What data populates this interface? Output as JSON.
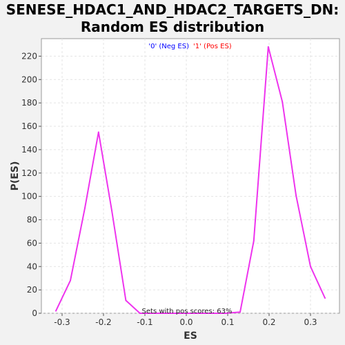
{
  "chart_data": {
    "type": "line",
    "title_lines": [
      "SENESE_HDAC1_AND_HDAC2_TARGETS_DN:",
      "Random ES distribution"
    ],
    "xlabel": "ES",
    "ylabel": "P(ES)",
    "xlim": [
      -0.35,
      0.37
    ],
    "ylim": [
      0,
      235
    ],
    "xticks": [
      -0.3,
      -0.2,
      -0.1,
      0.0,
      0.1,
      0.2,
      0.3
    ],
    "xtick_labels": [
      "-0.3",
      "-0.2",
      "-0.1",
      "0.0",
      "0.1",
      "0.2",
      "0.3"
    ],
    "yticks": [
      0,
      20,
      40,
      60,
      80,
      100,
      120,
      140,
      160,
      180,
      200,
      220
    ],
    "ytick_labels": [
      "0",
      "20",
      "40",
      "60",
      "80",
      "100",
      "120",
      "140",
      "160",
      "180",
      "200",
      "220"
    ],
    "grid": true,
    "legend": [
      {
        "label": "'0' (Neg ES)",
        "color": "#0000ff"
      },
      {
        "label": "'1' (Pos ES)",
        "color": "#ff0000"
      }
    ],
    "annotation": "Sets with pos scores: 63%",
    "series": [
      {
        "color": "#ee33ee",
        "x": [
          -0.315,
          -0.28,
          -0.245,
          -0.212,
          -0.18,
          -0.146,
          -0.112,
          -0.08,
          -0.045,
          -0.01,
          0.025,
          0.06,
          0.095,
          0.13,
          0.163,
          0.198,
          0.232,
          0.265,
          0.3,
          0.335
        ],
        "y": [
          2,
          28,
          90,
          155,
          88,
          11,
          0,
          0,
          0,
          0,
          0,
          0,
          0,
          1,
          62,
          228,
          181,
          101,
          40,
          13
        ]
      }
    ]
  }
}
